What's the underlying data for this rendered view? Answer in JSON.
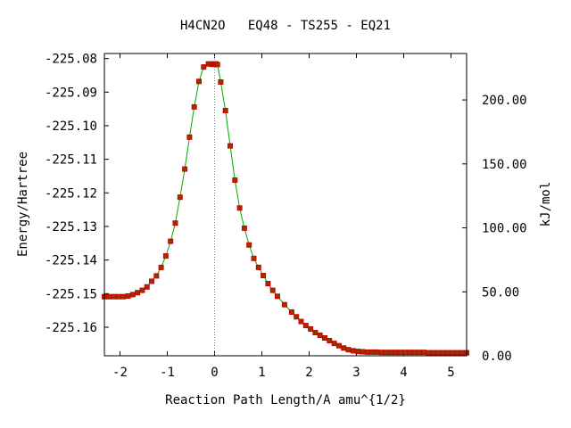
{
  "chart_data": {
    "type": "line",
    "title": "H4CN2O   EQ48 - TS255 - EQ21",
    "xlabel": "Reaction Path Length/A amu^{1/2}",
    "ylabel": "Energy/Hartree",
    "y2label": "kJ/mol",
    "xlim": [
      -2.33,
      5.33
    ],
    "ylim": [
      -225.1685,
      -225.0785
    ],
    "y2lim": [
      0.0,
      236.3
    ],
    "grid": false,
    "legend": "none",
    "x_ticks": [
      -2,
      -1,
      0,
      1,
      2,
      3,
      4,
      5
    ],
    "x_tick_labels": [
      "-2",
      "-1",
      "0",
      "1",
      "2",
      "3",
      "4",
      "5"
    ],
    "y_ticks": [
      -225.08,
      -225.09,
      -225.1,
      -225.11,
      -225.12,
      -225.13,
      -225.14,
      -225.15,
      -225.16
    ],
    "y_tick_labels": [
      "-225.08",
      "-225.09",
      "-225.10",
      "-225.11",
      "-225.12",
      "-225.13",
      "-225.14",
      "-225.15",
      "-225.16"
    ],
    "y2_ticks": [
      0,
      50,
      100,
      150,
      200
    ],
    "y2_tick_labels": [
      "0.00",
      "50.00",
      "100.00",
      "150.00",
      "200.00"
    ],
    "ts_x": 0.0,
    "colors": {
      "line": "#00aa00",
      "marker": "#cc0000",
      "marker_fill": "#993300",
      "ts_line": "#888888"
    },
    "series": [
      {
        "x": [
          -2.33,
          -2.23,
          -2.13,
          -2.03,
          -1.93,
          -1.83,
          -1.73,
          -1.63,
          -1.53,
          -1.43,
          -1.33,
          -1.23,
          -1.13,
          -1.03,
          -0.93,
          -0.83,
          -0.73,
          -0.63,
          -0.53,
          -0.43,
          -0.33,
          -0.23,
          -0.13,
          -0.06,
          -0.03,
          0.0,
          0.03,
          0.06,
          0.13,
          0.23,
          0.33,
          0.43,
          0.53,
          0.63,
          0.73,
          0.83,
          0.93,
          1.03,
          1.13,
          1.23,
          1.33,
          1.48,
          1.63,
          1.73,
          1.83,
          1.93,
          2.03,
          2.13,
          2.23,
          2.33,
          2.43,
          2.53,
          2.63,
          2.73,
          2.83,
          2.93,
          3.03,
          3.13,
          3.23,
          3.33,
          3.43,
          3.53,
          3.63,
          3.73,
          3.83,
          3.93,
          4.03,
          4.13,
          4.23,
          4.33,
          4.43,
          4.53,
          4.63,
          4.73,
          4.83,
          4.93,
          5.03,
          5.13,
          5.23,
          5.33
        ],
        "y": [
          -225.1509,
          -225.1509,
          -225.1509,
          -225.1509,
          -225.1509,
          -225.1507,
          -225.1503,
          -225.1497,
          -225.149,
          -225.148,
          -225.1463,
          -225.1447,
          -225.1422,
          -225.1388,
          -225.1344,
          -225.129,
          -225.1213,
          -225.1129,
          -225.1034,
          -225.0944,
          -225.0868,
          -225.0825,
          -225.0816,
          -225.0817,
          -225.0816,
          -225.0817,
          -225.0816,
          -225.0818,
          -225.087,
          -225.0955,
          -225.106,
          -225.1162,
          -225.1245,
          -225.1305,
          -225.1355,
          -225.1395,
          -225.1422,
          -225.1446,
          -225.147,
          -225.149,
          -225.1508,
          -225.1533,
          -225.1555,
          -225.1569,
          -225.1583,
          -225.1595,
          -225.1605,
          -225.1616,
          -225.1624,
          -225.1632,
          -225.164,
          -225.1648,
          -225.1655,
          -225.1662,
          -225.1667,
          -225.167,
          -225.1672,
          -225.1673,
          -225.1674,
          -225.1674,
          -225.1674,
          -225.1675,
          -225.1675,
          -225.1675,
          -225.1675,
          -225.1675,
          -225.1675,
          -225.1675,
          -225.1675,
          -225.1675,
          -225.1675,
          -225.1676,
          -225.1676,
          -225.1676,
          -225.1676,
          -225.1676,
          -225.1676,
          -225.1676,
          -225.1676,
          -225.1676
        ]
      }
    ]
  }
}
